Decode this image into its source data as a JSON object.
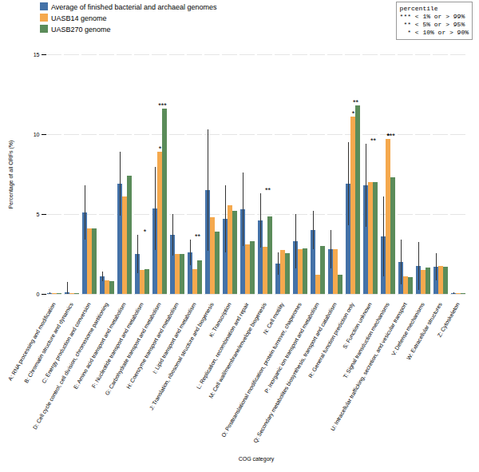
{
  "chart_data": {
    "type": "bar",
    "xlabel": "COG category",
    "ylabel": "Percentage of all ORFs (%)",
    "categories": [
      "A: RNA processing and modification",
      "B: Chromatin structure and dynamics",
      "C: Energy production and conversion",
      "D: Cell cycle control, cell division, chromosome partitioning",
      "E: Amino acid transport and metabolism",
      "F: Nucleotide transport and metabolism",
      "G: Carbohydrate transport and metabolism",
      "H: Coenzyme transport and metabolism",
      "I: Lipid transport and metabolism",
      "J: Translation, ribosomal structure and biogenesis",
      "K: Transcription",
      "L: Replication, recombination and repair",
      "M: Cell wall/membrane/envelope biogenesis",
      "N: Cell motility",
      "O: Posttranslational modification, protein turnover, chaperones",
      "P: Inorganic ion transport and metabolism",
      "Q: Secondary metabolites biosynthesis, transport and catabolism",
      "R: General function prediction only",
      "S: Function unknown",
      "T: Signal transduction mechanisms",
      "U: Intracellular trafficking, secretion, and vesicular transport",
      "V: Defense mechanisms",
      "W: Extracellular structures",
      "Z: Cytoskeleton"
    ],
    "series": [
      {
        "name": "Average of finished bacterial and archaeal genomes",
        "color": "#4472A8",
        "values": [
          0.05,
          0.1,
          5.1,
          1.1,
          6.9,
          2.5,
          5.35,
          3.7,
          2.6,
          6.5,
          4.7,
          5.3,
          4.6,
          1.9,
          3.3,
          4.0,
          2.8,
          6.9,
          6.8,
          3.6,
          2.0,
          1.75,
          1.7,
          0.05
        ],
        "errors": [
          0.05,
          0.65,
          1.7,
          0.3,
          2.0,
          1.2,
          2.6,
          1.3,
          0.8,
          3.8,
          2.1,
          2.3,
          1.7,
          0.7,
          1.7,
          1.2,
          1.2,
          2.6,
          2.6,
          2.5,
          1.4,
          1.5,
          0.85,
          0.05
        ]
      },
      {
        "name": "UASB14 genome",
        "color": "#F5A94E",
        "values": [
          0.05,
          0.05,
          4.1,
          0.85,
          6.1,
          1.5,
          8.9,
          2.5,
          1.55,
          4.8,
          5.55,
          3.1,
          2.95,
          2.75,
          2.8,
          1.2,
          2.8,
          11.1,
          7.0,
          9.7,
          1.1,
          1.5,
          1.75,
          0.05
        ],
        "stars": [
          null,
          null,
          null,
          null,
          null,
          null,
          "*",
          null,
          null,
          null,
          null,
          null,
          null,
          null,
          null,
          null,
          null,
          "*",
          null,
          "*",
          null,
          null,
          null,
          null
        ]
      },
      {
        "name": "UASB270 genome",
        "color": "#5B8C5A",
        "values": [
          0.05,
          0.05,
          4.1,
          0.8,
          7.4,
          1.55,
          11.6,
          2.5,
          2.1,
          3.9,
          5.2,
          3.3,
          4.85,
          2.55,
          2.85,
          3.0,
          1.2,
          11.8,
          7.0,
          7.3,
          1.05,
          1.65,
          1.7,
          0.05
        ],
        "stars": [
          null,
          null,
          null,
          null,
          null,
          "*",
          "***",
          null,
          "**",
          null,
          null,
          null,
          "**",
          null,
          null,
          null,
          null,
          "**",
          "**",
          "***",
          null,
          null,
          null,
          null
        ]
      }
    ],
    "annotation": "percentile\n*** < 1% or > 99%\n ** < 5% or > 95%\n  * < 10% or > 90%",
    "ylim": [
      0,
      15
    ],
    "yticks": [
      0,
      5,
      10,
      15
    ],
    "grid": true,
    "legend": "top"
  }
}
